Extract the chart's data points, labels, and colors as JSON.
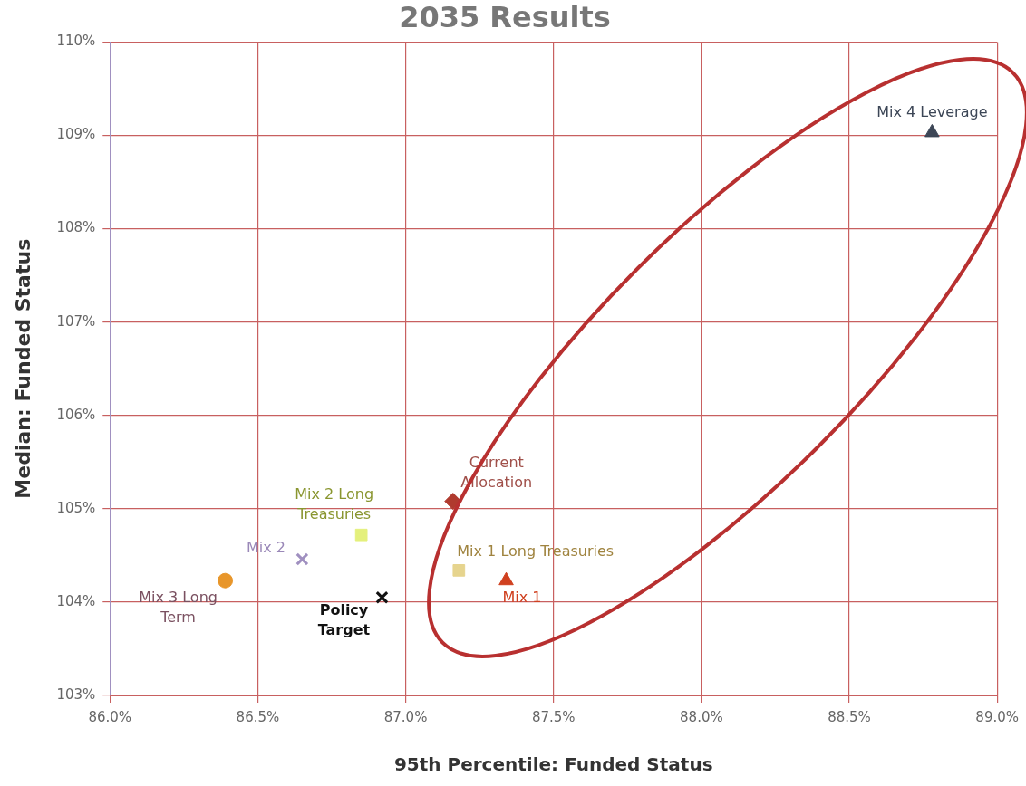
{
  "chart_data": {
    "type": "scatter",
    "title": "2035 Results",
    "xlabel": "95th Percentile: Funded Status",
    "ylabel": "Median: Funded Status",
    "xlim": [
      86,
      89
    ],
    "xticks": [
      {
        "value": 86,
        "label": "86.0%"
      },
      {
        "value": 86.5,
        "label": "86.5%"
      },
      {
        "value": 87,
        "label": "87.0%"
      },
      {
        "value": 87.5,
        "label": "87.5%"
      },
      {
        "value": 88,
        "label": "88.0%"
      },
      {
        "value": 88.5,
        "label": "88.5%"
      },
      {
        "value": 89,
        "label": "89.0%"
      }
    ],
    "ylim": [
      103,
      110
    ],
    "yticks": [
      {
        "value": 103,
        "label": "103%"
      },
      {
        "value": 104,
        "label": "104%"
      },
      {
        "value": 105,
        "label": "105%"
      },
      {
        "value": 106,
        "label": "106%"
      },
      {
        "value": 107,
        "label": "107%"
      },
      {
        "value": 108,
        "label": "108%"
      },
      {
        "value": 109,
        "label": "109%"
      },
      {
        "value": 110,
        "label": "110%"
      }
    ],
    "grid": true,
    "legend": false,
    "series": [
      {
        "name": "Mix 4 Leverage",
        "color": "#3c4656",
        "marker": "triangle",
        "x": [
          88.78
        ],
        "values": [
          109.03
        ]
      },
      {
        "name": "Current Allocation",
        "color": "#b03a2e",
        "marker": "diamond",
        "x": [
          87.16
        ],
        "values": [
          105.08
        ]
      },
      {
        "name": "Mix 2 Long Treasuries",
        "color": "#e4f07c",
        "marker": "square",
        "x": [
          86.85
        ],
        "values": [
          104.72
        ]
      },
      {
        "name": "Mix 1 Long Treasuries",
        "color": "#e6d48e",
        "marker": "square",
        "x": [
          87.18
        ],
        "values": [
          104.34
        ]
      },
      {
        "name": "Mix 1",
        "color": "#d0401f",
        "marker": "triangle",
        "x": [
          87.34
        ],
        "values": [
          104.23
        ]
      },
      {
        "name": "Mix 2",
        "color": "#a090c0",
        "marker": "cross",
        "x": [
          86.65
        ],
        "values": [
          104.46
        ]
      },
      {
        "name": "Mix 3 Long Term",
        "color": "#e8962a",
        "marker": "circle",
        "x": [
          86.39
        ],
        "values": [
          104.23
        ]
      },
      {
        "name": "Policy Target",
        "color": "#111111",
        "marker": "cross",
        "x": [
          86.92
        ],
        "values": [
          104.05
        ]
      }
    ]
  }
}
